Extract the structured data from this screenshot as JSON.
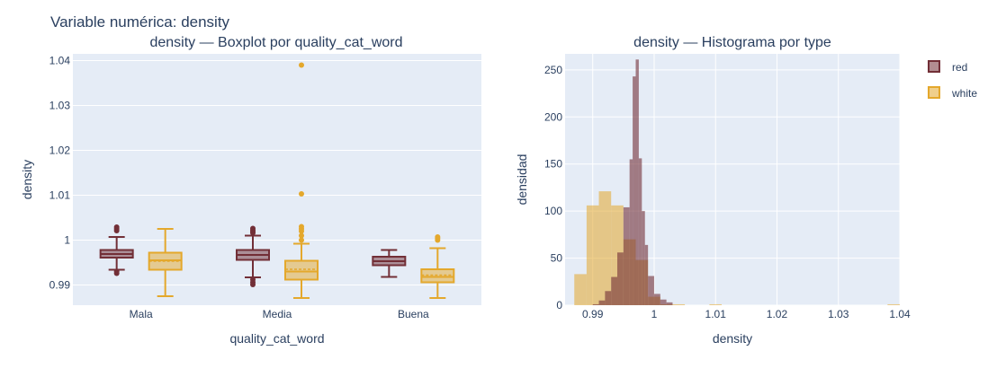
{
  "figure": {
    "title": "Variable numérica: density",
    "colors": {
      "red": "#722f37",
      "white": "#e4a82c",
      "plot_bg": "#e5ecf6",
      "grid": "#ffffff"
    }
  },
  "chart_data": [
    {
      "type": "box",
      "title": "density — Boxplot por quality_cat_word",
      "xlabel": "quality_cat_word",
      "ylabel": "density",
      "categories": [
        "Mala",
        "Media",
        "Buena"
      ],
      "ylim": [
        0.9855,
        1.0415
      ],
      "yticks": [
        0.99,
        1,
        1.01,
        1.02,
        1.03,
        1.04
      ],
      "ytick_labels": [
        "0.99",
        "1",
        "1.01",
        "1.02",
        "1.03",
        "1.04"
      ],
      "grid": true,
      "series": [
        {
          "group": "red",
          "boxes": [
            {
              "category": "Mala",
              "lowerfence": 0.9934,
              "q1": 0.9961,
              "median": 0.9969,
              "q3": 0.9978,
              "upperfence": 1.0007,
              "mean": 0.9969,
              "outliers": [
                1.0029,
                1.0025,
                1.0021,
                0.993,
                0.9926
              ]
            },
            {
              "category": "Media",
              "lowerfence": 0.9917,
              "q1": 0.9956,
              "median": 0.9967,
              "q3": 0.9978,
              "upperfence": 1.001,
              "mean": 0.9967,
              "outliers": [
                1.0026,
                1.0022,
                1.0019,
                1.0016,
                0.9912,
                0.9906,
                0.9901
              ]
            },
            {
              "category": "Buena",
              "lowerfence": 0.9918,
              "q1": 0.9944,
              "median": 0.9953,
              "q3": 0.9963,
              "upperfence": 0.9978,
              "mean": 0.9953,
              "outliers": []
            }
          ]
        },
        {
          "group": "white",
          "boxes": [
            {
              "category": "Mala",
              "lowerfence": 0.9875,
              "q1": 0.9934,
              "median": 0.9955,
              "q3": 0.9972,
              "upperfence": 1.0025,
              "mean": 0.9953,
              "outliers": []
            },
            {
              "category": "Media",
              "lowerfence": 0.9871,
              "q1": 0.9912,
              "median": 0.993,
              "q3": 0.9954,
              "upperfence": 0.9992,
              "mean": 0.9935,
              "outliers": [
                1.039,
                1.0103,
                1.003,
                1.0025,
                1.002,
                1.001,
                1.0
              ]
            },
            {
              "category": "Buena",
              "lowerfence": 0.9871,
              "q1": 0.9906,
              "median": 0.9918,
              "q3": 0.9935,
              "upperfence": 0.9982,
              "mean": 0.9922,
              "outliers": [
                1.0,
                1.0007,
                1.0004
              ]
            }
          ]
        }
      ]
    },
    {
      "type": "histogram",
      "title": "density — Histograma por type",
      "xlabel": "density",
      "ylabel": "densidad",
      "xlim": [
        0.9855,
        1.04
      ],
      "ylim": [
        0,
        267
      ],
      "xticks": [
        0.99,
        1,
        1.01,
        1.02,
        1.03,
        1.04
      ],
      "xtick_labels": [
        "0.99",
        "1",
        "1.01",
        "1.02",
        "1.03",
        "1.04"
      ],
      "yticks": [
        0,
        50,
        100,
        150,
        200,
        250
      ],
      "ytick_labels": [
        "0",
        "50",
        "100",
        "150",
        "200",
        "250"
      ],
      "grid": true,
      "legend": {
        "placement": "top-right"
      },
      "series": [
        {
          "name": "white",
          "opacity": 0.55,
          "bins": [
            {
              "x0": 0.987,
              "x1": 0.989,
              "y": 33
            },
            {
              "x0": 0.989,
              "x1": 0.991,
              "y": 106
            },
            {
              "x0": 0.991,
              "x1": 0.993,
              "y": 121
            },
            {
              "x0": 0.993,
              "x1": 0.995,
              "y": 106
            },
            {
              "x0": 0.995,
              "x1": 0.997,
              "y": 70
            },
            {
              "x0": 0.997,
              "x1": 0.999,
              "y": 48
            },
            {
              "x0": 0.999,
              "x1": 1.001,
              "y": 9
            },
            {
              "x0": 1.001,
              "x1": 1.003,
              "y": 1
            },
            {
              "x0": 1.003,
              "x1": 1.005,
              "y": 1
            },
            {
              "x0": 1.009,
              "x1": 1.011,
              "y": 1
            },
            {
              "x0": 1.038,
              "x1": 1.04,
              "y": 1
            }
          ]
        },
        {
          "name": "red",
          "opacity": 0.6,
          "bins": [
            {
              "x0": 0.99,
              "x1": 0.991,
              "y": 1
            },
            {
              "x0": 0.991,
              "x1": 0.992,
              "y": 5
            },
            {
              "x0": 0.992,
              "x1": 0.993,
              "y": 15
            },
            {
              "x0": 0.993,
              "x1": 0.994,
              "y": 30
            },
            {
              "x0": 0.994,
              "x1": 0.995,
              "y": 56
            },
            {
              "x0": 0.995,
              "x1": 0.996,
              "y": 104
            },
            {
              "x0": 0.996,
              "x1": 0.9965,
              "y": 155
            },
            {
              "x0": 0.9965,
              "x1": 0.997,
              "y": 243
            },
            {
              "x0": 0.997,
              "x1": 0.9975,
              "y": 261
            },
            {
              "x0": 0.9975,
              "x1": 0.998,
              "y": 156
            },
            {
              "x0": 0.998,
              "x1": 0.9985,
              "y": 100
            },
            {
              "x0": 0.9985,
              "x1": 0.999,
              "y": 64
            },
            {
              "x0": 0.999,
              "x1": 1.0,
              "y": 31
            },
            {
              "x0": 1.0,
              "x1": 1.001,
              "y": 12
            },
            {
              "x0": 1.001,
              "x1": 1.002,
              "y": 6
            },
            {
              "x0": 1.002,
              "x1": 1.003,
              "y": 3
            }
          ]
        }
      ]
    }
  ],
  "legend": {
    "items": [
      {
        "label": "red",
        "group": "red"
      },
      {
        "label": "white",
        "group": "white"
      }
    ]
  }
}
